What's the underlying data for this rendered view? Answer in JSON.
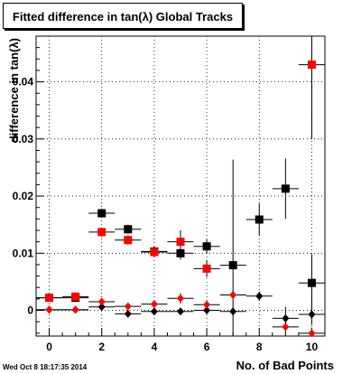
{
  "title": "Fitted difference in tan(λ)  Global Tracks",
  "timestamp": "Wed Oct  8 18:17:35 2014",
  "colors": {
    "black_series": "#000000",
    "red_series": "#ff0000",
    "frame": "#000000",
    "grid": "#000000"
  },
  "chart_data": {
    "type": "scatter",
    "title": "Fitted difference in tan(λ)  Global Tracks",
    "xlabel": "No. of Bad Points",
    "ylabel": "difference in tan(λ)",
    "xlim": [
      -0.5,
      10.5
    ],
    "ylim": [
      -0.0045,
      0.048
    ],
    "grid": true,
    "x_ticks": [
      0,
      2,
      4,
      6,
      8,
      10
    ],
    "x_tick_labels": [
      "0",
      "2",
      "4",
      "6",
      "8",
      "10"
    ],
    "y_ticks": [
      0,
      0.01,
      0.02,
      0.03,
      0.04
    ],
    "y_tick_labels": [
      "0",
      "0.01",
      "0.02",
      "0.03",
      "0.04"
    ],
    "series": [
      {
        "marker": "square",
        "color": "#000000",
        "x": [
          0,
          1,
          2,
          3,
          4,
          5,
          6,
          7,
          8,
          9,
          10
        ],
        "y": [
          0.0022,
          0.0022,
          0.017,
          0.0142,
          0.0103,
          0.01,
          0.0112,
          0.0079,
          0.0159,
          0.0213,
          0.0048
        ],
        "yerr": [
          0.0004,
          0.0004,
          0.0008,
          0.0008,
          0.0009,
          0.0011,
          0.0012,
          0.0185,
          0.0028,
          0.0053,
          0.005
        ]
      },
      {
        "marker": "square",
        "color": "#ff0000",
        "x": [
          0,
          1,
          2,
          3,
          4,
          5,
          6,
          7,
          8,
          9,
          10
        ],
        "y": [
          0.0022,
          0.0024,
          0.0137,
          0.0123,
          0.0102,
          0.012,
          0.0073,
          null,
          null,
          null,
          0.043
        ],
        "yerr": [
          0.0004,
          0.0004,
          0.0008,
          0.0008,
          0.0009,
          0.002,
          0.0015,
          null,
          null,
          null,
          0.013
        ]
      },
      {
        "marker": "diamond",
        "color": "#000000",
        "x": [
          0,
          1,
          2,
          3,
          4,
          5,
          6,
          7,
          8,
          9,
          10
        ],
        "y": [
          0.0001,
          0.0001,
          0.0006,
          -0.0006,
          -0.0002,
          -0.0002,
          0.0,
          -0.0002,
          0.0025,
          -0.0014,
          -0.0007
        ],
        "yerr": [
          0.0002,
          0.0002,
          0.0003,
          0.0003,
          0.0003,
          0.0004,
          0.0005,
          0.0006,
          0.0008,
          0.002,
          0.0018
        ]
      },
      {
        "marker": "diamond",
        "color": "#ff0000",
        "x": [
          0,
          1,
          2,
          3,
          4,
          5,
          6,
          7,
          8,
          9,
          10
        ],
        "y": [
          0.0001,
          0.0001,
          0.0015,
          0.0007,
          0.0011,
          0.0021,
          0.001,
          0.0027,
          null,
          -0.0029,
          -0.004
        ],
        "yerr": [
          0.0002,
          0.0002,
          0.0004,
          0.0003,
          0.0005,
          0.0009,
          0.0006,
          0.0007,
          null,
          0.001,
          0.001
        ]
      }
    ]
  }
}
